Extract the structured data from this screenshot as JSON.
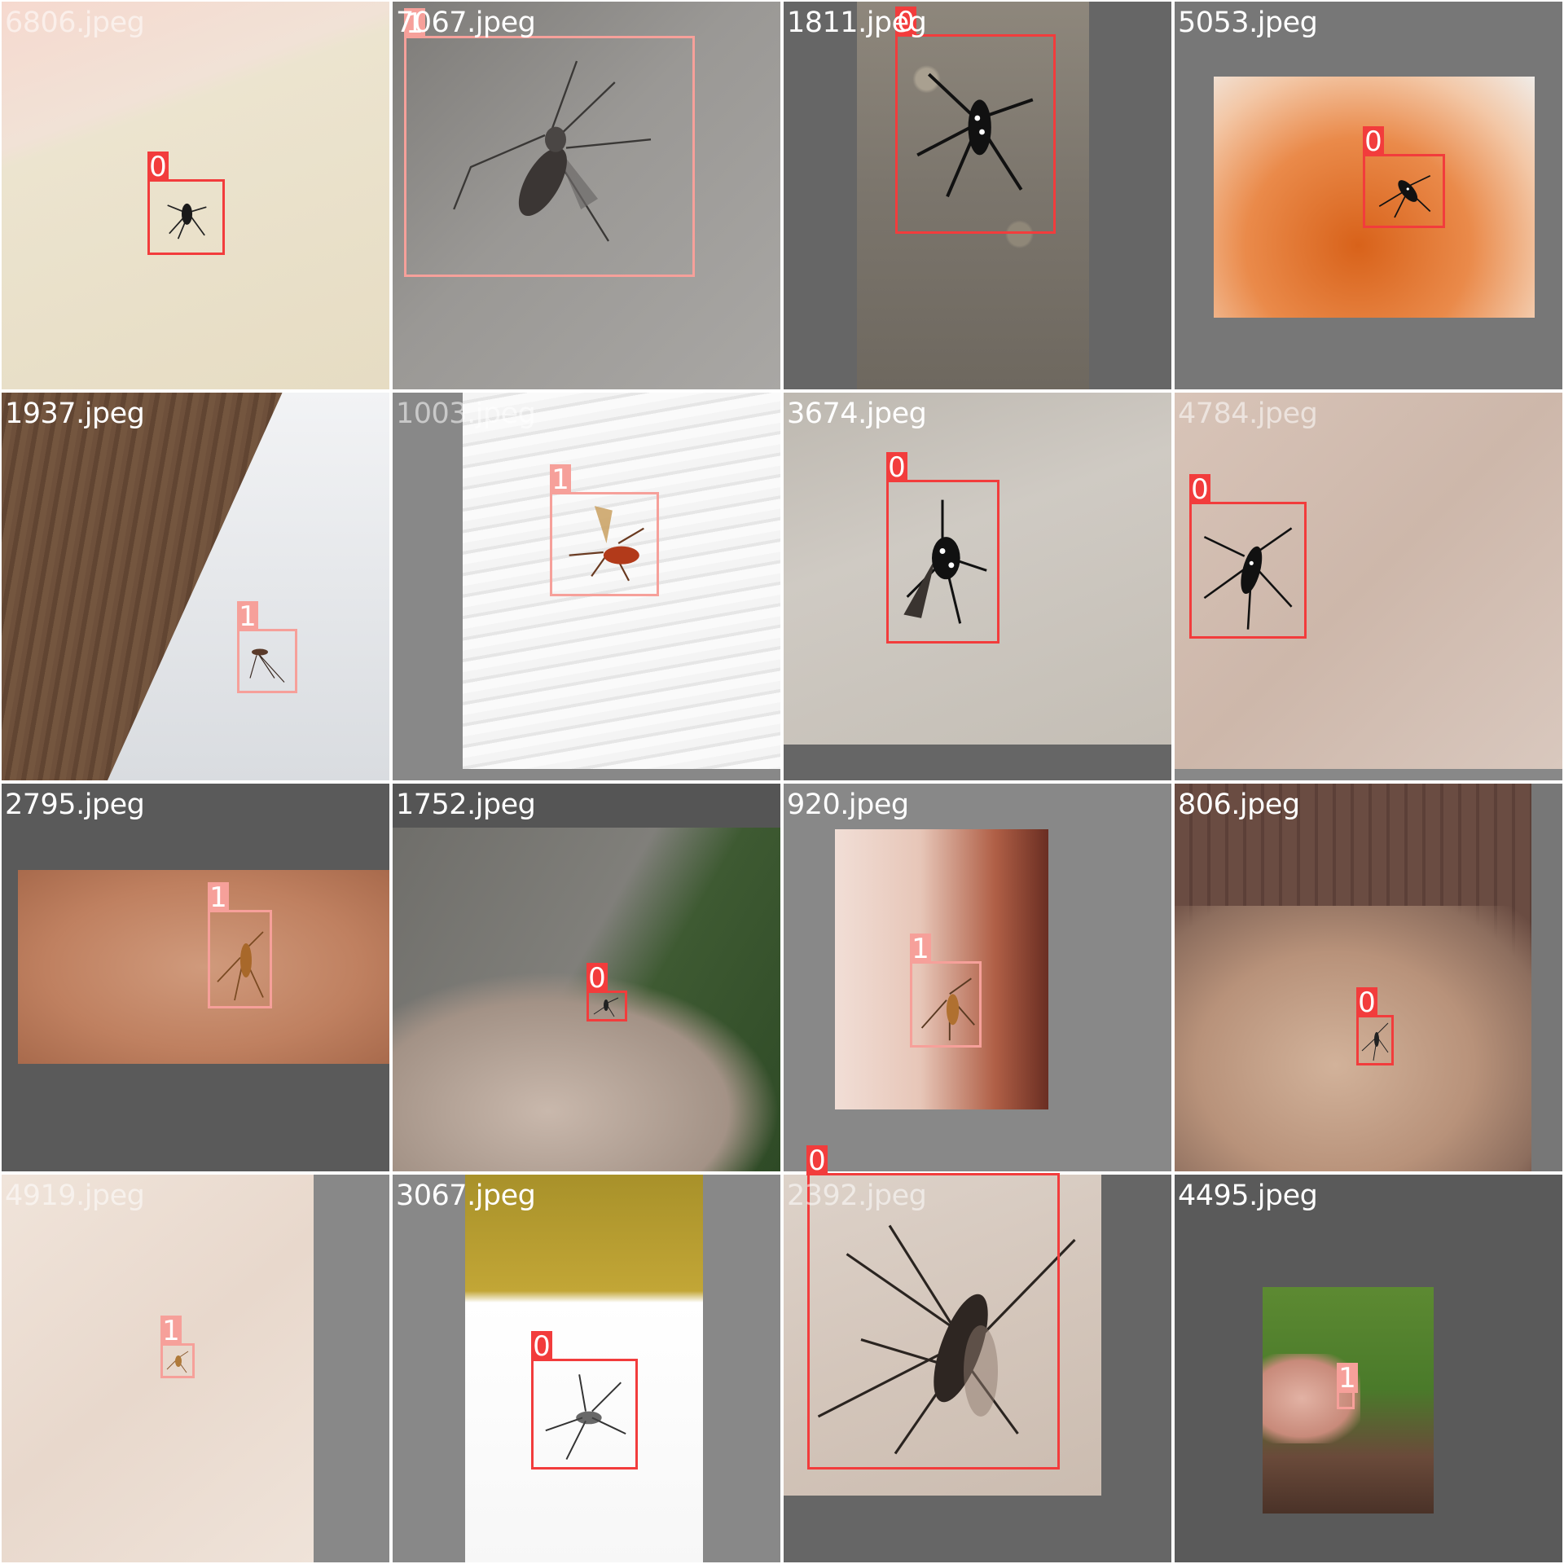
{
  "mosaic": {
    "tiles": [
      {
        "name": "6806.jpeg",
        "boxes": [
          {
            "cls": "0"
          }
        ]
      },
      {
        "name": "7067.jpeg",
        "boxes": [
          {
            "cls": "1"
          }
        ]
      },
      {
        "name": "1811.jpeg",
        "boxes": [
          {
            "cls": "0"
          }
        ]
      },
      {
        "name": "5053.jpeg",
        "boxes": [
          {
            "cls": "0"
          }
        ]
      },
      {
        "name": "1937.jpeg",
        "boxes": [
          {
            "cls": "1"
          }
        ]
      },
      {
        "name": "1003.jpeg",
        "boxes": [
          {
            "cls": "1"
          }
        ]
      },
      {
        "name": "3674.jpeg",
        "boxes": [
          {
            "cls": "0"
          }
        ]
      },
      {
        "name": "4784.jpeg",
        "boxes": [
          {
            "cls": "0"
          }
        ]
      },
      {
        "name": "2795.jpeg",
        "boxes": [
          {
            "cls": "1"
          }
        ]
      },
      {
        "name": "1752.jpeg",
        "boxes": [
          {
            "cls": "0"
          }
        ]
      },
      {
        "name": "920.jpeg",
        "boxes": [
          {
            "cls": "1"
          }
        ]
      },
      {
        "name": "806.jpeg",
        "boxes": [
          {
            "cls": "0"
          }
        ]
      },
      {
        "name": "4919.jpeg",
        "boxes": [
          {
            "cls": "1"
          }
        ]
      },
      {
        "name": "3067.jpeg",
        "boxes": [
          {
            "cls": "0"
          }
        ]
      },
      {
        "name": "2392.jpeg",
        "boxes": [
          {
            "cls": "0"
          }
        ]
      },
      {
        "name": "4495.jpeg",
        "boxes": [
          {
            "cls": "1"
          }
        ]
      }
    ]
  },
  "colors": {
    "class_0": "#f23c3c",
    "class_1": "#f6a09a",
    "grid_line": "#ffffff"
  },
  "icons": {
    "subject": "mosquito-icon"
  }
}
